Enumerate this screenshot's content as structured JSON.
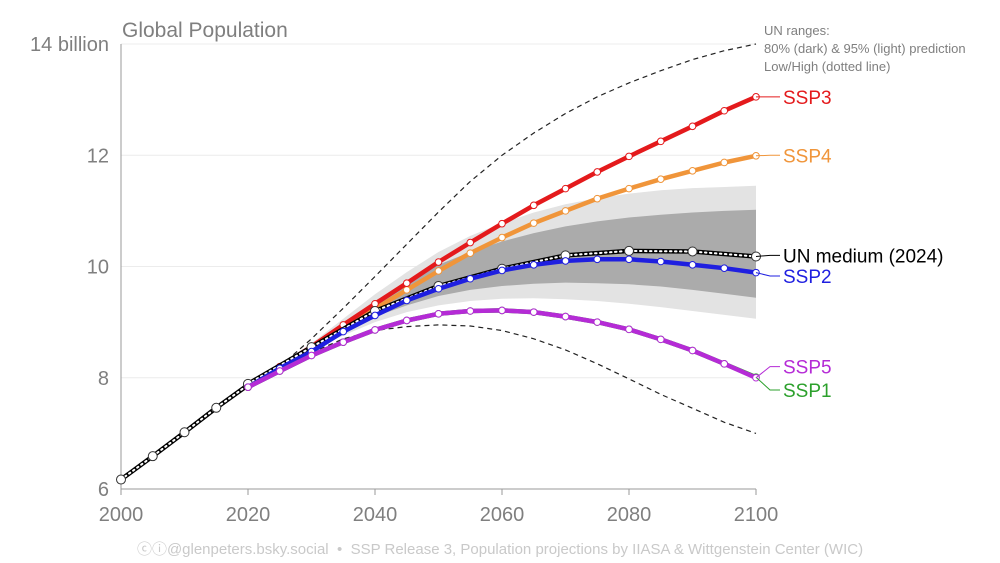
{
  "chart_data": {
    "type": "line",
    "title": "Global Population",
    "xlim": [
      2000,
      2100
    ],
    "ylim": [
      6,
      14
    ],
    "x_ticks": [
      2000,
      2020,
      2040,
      2060,
      2080,
      2100
    ],
    "y_ticks": [
      {
        "value": 6,
        "label": "6"
      },
      {
        "value": 8,
        "label": "8"
      },
      {
        "value": 10,
        "label": "10"
      },
      {
        "value": 12,
        "label": "12"
      },
      {
        "value": 14,
        "label": "14 billion"
      }
    ],
    "grid": true,
    "annotation": [
      "UN ranges:",
      "80% (dark) & 95% (light) prediction",
      "Low/High (dotted line)"
    ],
    "un_ranges": {
      "x": [
        2025,
        2030,
        2035,
        2040,
        2045,
        2050,
        2055,
        2060,
        2065,
        2070,
        2075,
        2080,
        2085,
        2090,
        2095,
        2100
      ],
      "pi95_low": [
        8.15,
        8.48,
        8.76,
        9.0,
        9.18,
        9.3,
        9.38,
        9.42,
        9.43,
        9.41,
        9.38,
        9.33,
        9.27,
        9.2,
        9.13,
        9.06
      ],
      "pi95_high": [
        8.2,
        8.62,
        9.06,
        9.5,
        9.9,
        10.26,
        10.55,
        10.78,
        10.97,
        11.12,
        11.23,
        11.31,
        11.37,
        11.41,
        11.43,
        11.45
      ],
      "pi80_low": [
        8.16,
        8.5,
        8.82,
        9.1,
        9.3,
        9.47,
        9.58,
        9.65,
        9.69,
        9.71,
        9.7,
        9.68,
        9.64,
        9.58,
        9.51,
        9.44
      ],
      "pi80_high": [
        8.19,
        8.58,
        8.97,
        9.38,
        9.73,
        10.03,
        10.26,
        10.45,
        10.6,
        10.72,
        10.81,
        10.88,
        10.93,
        10.97,
        11.0,
        11.02
      ]
    },
    "un_low_high": {
      "x": [
        2025,
        2030,
        2035,
        2040,
        2045,
        2050,
        2055,
        2060,
        2065,
        2070,
        2075,
        2080,
        2085,
        2090,
        2095,
        2100
      ],
      "low": [
        8.15,
        8.45,
        8.7,
        8.85,
        8.92,
        8.95,
        8.93,
        8.85,
        8.7,
        8.5,
        8.25,
        7.98,
        7.7,
        7.45,
        7.2,
        7.0
      ],
      "high": [
        8.2,
        8.7,
        9.25,
        9.82,
        10.4,
        10.98,
        11.53,
        12.0,
        12.4,
        12.75,
        13.05,
        13.3,
        13.52,
        13.72,
        13.88,
        14.0
      ]
    },
    "historical": {
      "name": "Historical",
      "color": "#000000",
      "x": [
        2000,
        2005,
        2010,
        2015,
        2020
      ],
      "values": [
        6.17,
        6.59,
        7.02,
        7.46,
        7.87
      ]
    },
    "series": [
      {
        "name": "UN medium (2024)",
        "label": "UN medium (2024)",
        "color": "#000000",
        "label_color": "#000000",
        "dotted": true,
        "x": [
          2020,
          2030,
          2040,
          2050,
          2060,
          2070,
          2080,
          2090,
          2100
        ],
        "values": [
          7.89,
          8.55,
          9.2,
          9.65,
          9.96,
          10.2,
          10.28,
          10.27,
          10.18
        ]
      },
      {
        "name": "SSP3",
        "label": "SSP3",
        "color": "#e41a1c",
        "label_color": "#e41a1c",
        "x": [
          2020,
          2025,
          2030,
          2035,
          2040,
          2045,
          2050,
          2055,
          2060,
          2065,
          2070,
          2075,
          2080,
          2085,
          2090,
          2095,
          2100
        ],
        "values": [
          7.83,
          8.2,
          8.56,
          8.95,
          9.33,
          9.7,
          10.08,
          10.43,
          10.77,
          11.1,
          11.4,
          11.7,
          11.98,
          12.25,
          12.52,
          12.8,
          13.05
        ]
      },
      {
        "name": "SSP4",
        "label": "SSP4",
        "color": "#f0953a",
        "label_color": "#f0953a",
        "x": [
          2020,
          2025,
          2030,
          2035,
          2040,
          2045,
          2050,
          2055,
          2060,
          2065,
          2070,
          2075,
          2080,
          2085,
          2090,
          2095,
          2100
        ],
        "values": [
          7.83,
          8.18,
          8.52,
          8.89,
          9.24,
          9.58,
          9.92,
          10.24,
          10.52,
          10.78,
          11.0,
          11.22,
          11.4,
          11.57,
          11.72,
          11.87,
          11.99
        ]
      },
      {
        "name": "SSP2",
        "label": "SSP2",
        "color": "#1f1fe0",
        "label_color": "#1f1fe0",
        "x": [
          2020,
          2025,
          2030,
          2035,
          2040,
          2045,
          2050,
          2055,
          2060,
          2065,
          2070,
          2075,
          2080,
          2085,
          2090,
          2095,
          2100
        ],
        "values": [
          7.83,
          8.17,
          8.47,
          8.83,
          9.12,
          9.39,
          9.6,
          9.78,
          9.93,
          10.03,
          10.1,
          10.13,
          10.13,
          10.09,
          10.03,
          9.97,
          9.89
        ]
      },
      {
        "name": "SSP1",
        "label": "SSP1",
        "color": "#2ca02c",
        "label_color": "#2ca02c",
        "x": [
          2020,
          2025,
          2030,
          2035,
          2040,
          2045,
          2050,
          2055,
          2060,
          2065,
          2070,
          2075,
          2080,
          2085,
          2090,
          2095,
          2100
        ],
        "values": [
          7.83,
          8.12,
          8.4,
          8.64,
          8.86,
          9.03,
          9.15,
          9.2,
          9.21,
          9.18,
          9.1,
          9.0,
          8.87,
          8.69,
          8.49,
          8.25,
          8.01
        ]
      },
      {
        "name": "SSP5",
        "label": "SSP5",
        "color": "#b52bd6",
        "label_color": "#b52bd6",
        "x": [
          2020,
          2025,
          2030,
          2035,
          2040,
          2045,
          2050,
          2055,
          2060,
          2065,
          2070,
          2075,
          2080,
          2085,
          2090,
          2095,
          2100
        ],
        "values": [
          7.83,
          8.12,
          8.4,
          8.64,
          8.86,
          9.03,
          9.15,
          9.2,
          9.21,
          9.18,
          9.1,
          9.0,
          8.87,
          8.69,
          8.49,
          8.25,
          8.0
        ]
      }
    ]
  },
  "footer": {
    "credit": "ⓒⓘ@glenpeters.bsky.social",
    "separator": "•",
    "source": "SSP Release 3, Population projections by IIASA & Wittgenstein Center (WIC)"
  }
}
